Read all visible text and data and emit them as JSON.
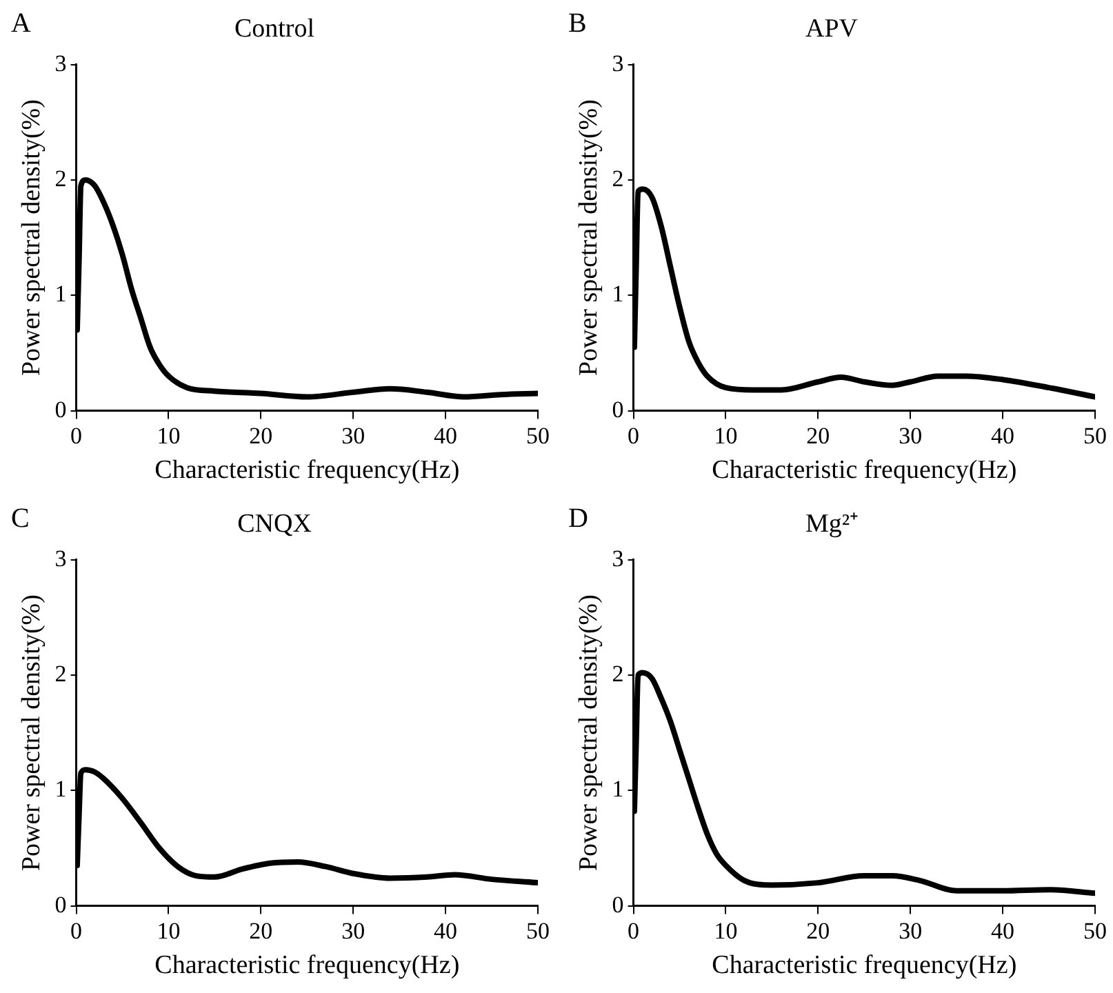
{
  "chart_data": [
    {
      "type": "line",
      "title": "Control",
      "xlabel": "Characteristic frequency(Hz)",
      "ylabel": "Power spectral density(%)",
      "annotations": [
        "A"
      ],
      "xlim": [
        0,
        50
      ],
      "xticks": [
        0,
        10,
        20,
        30,
        40,
        50
      ],
      "ylim": [
        0,
        3
      ],
      "yticks": [
        0,
        1,
        2,
        3
      ],
      "grid": false,
      "legend": false,
      "marker": "none",
      "line_style": "solid",
      "series": [
        {
          "color": "#000000",
          "x": [
            0.1,
            0.3,
            0.5,
            1,
            2,
            3,
            4,
            5,
            6,
            7,
            8,
            9,
            10,
            12,
            15,
            20,
            25,
            30,
            34,
            38,
            42,
            46,
            50
          ],
          "values": [
            0.7,
            1.3,
            1.95,
            2.0,
            1.95,
            1.8,
            1.6,
            1.35,
            1.05,
            0.8,
            0.55,
            0.4,
            0.3,
            0.2,
            0.17,
            0.15,
            0.12,
            0.16,
            0.19,
            0.16,
            0.12,
            0.14,
            0.15
          ]
        }
      ]
    },
    {
      "type": "line",
      "title": "APV",
      "xlabel": "Characteristic frequency(Hz)",
      "ylabel": "Power spectral density(%)",
      "annotations": [
        "B"
      ],
      "xlim": [
        0,
        50
      ],
      "xticks": [
        0,
        10,
        20,
        30,
        40,
        50
      ],
      "ylim": [
        0,
        3
      ],
      "yticks": [
        0,
        1,
        2,
        3
      ],
      "grid": false,
      "legend": false,
      "marker": "none",
      "line_style": "solid",
      "series": [
        {
          "color": "#000000",
          "x": [
            0.1,
            0.3,
            0.5,
            1,
            2,
            3,
            4,
            5,
            6,
            7,
            8,
            10,
            13,
            16,
            20,
            22.5,
            25,
            28,
            30,
            33,
            36,
            40,
            45,
            50
          ],
          "values": [
            0.55,
            1.25,
            1.9,
            1.92,
            1.85,
            1.6,
            1.25,
            0.9,
            0.6,
            0.42,
            0.3,
            0.2,
            0.18,
            0.18,
            0.25,
            0.29,
            0.25,
            0.22,
            0.25,
            0.3,
            0.3,
            0.27,
            0.2,
            0.12
          ]
        }
      ]
    },
    {
      "type": "line",
      "title": "CNQX",
      "xlabel": "Characteristic frequency(Hz)",
      "ylabel": "Power spectral density(%)",
      "annotations": [
        "C"
      ],
      "xlim": [
        0,
        50
      ],
      "xticks": [
        0,
        10,
        20,
        30,
        40,
        50
      ],
      "ylim": [
        0,
        3
      ],
      "yticks": [
        0,
        1,
        2,
        3
      ],
      "grid": false,
      "legend": false,
      "marker": "none",
      "line_style": "solid",
      "series": [
        {
          "color": "#000000",
          "x": [
            0.1,
            0.3,
            0.5,
            1,
            2,
            3,
            5,
            7,
            9,
            11,
            13,
            15,
            18,
            21,
            24,
            27,
            30,
            34,
            38,
            41,
            45,
            50
          ],
          "values": [
            0.35,
            0.78,
            1.15,
            1.18,
            1.16,
            1.1,
            0.93,
            0.72,
            0.5,
            0.34,
            0.26,
            0.25,
            0.32,
            0.37,
            0.38,
            0.34,
            0.28,
            0.24,
            0.25,
            0.27,
            0.23,
            0.2
          ]
        }
      ]
    },
    {
      "type": "line",
      "title": "Mg²⁺",
      "xlabel": "Characteristic frequency(Hz)",
      "ylabel": "Power spectral density(%)",
      "annotations": [
        "D"
      ],
      "xlim": [
        0,
        50
      ],
      "xticks": [
        0,
        10,
        20,
        30,
        40,
        50
      ],
      "ylim": [
        0,
        3
      ],
      "yticks": [
        0,
        1,
        2,
        3
      ],
      "grid": false,
      "legend": false,
      "marker": "none",
      "line_style": "solid",
      "series": [
        {
          "color": "#000000",
          "x": [
            0.1,
            0.3,
            0.5,
            1,
            2,
            3,
            4,
            5,
            6,
            7,
            8,
            9,
            10,
            12,
            15,
            20,
            25,
            28,
            31,
            35,
            40,
            45,
            50
          ],
          "values": [
            0.82,
            1.42,
            2.0,
            2.02,
            1.97,
            1.8,
            1.6,
            1.35,
            1.1,
            0.85,
            0.62,
            0.45,
            0.35,
            0.22,
            0.18,
            0.2,
            0.26,
            0.26,
            0.22,
            0.13,
            0.13,
            0.14,
            0.11
          ]
        }
      ]
    }
  ]
}
